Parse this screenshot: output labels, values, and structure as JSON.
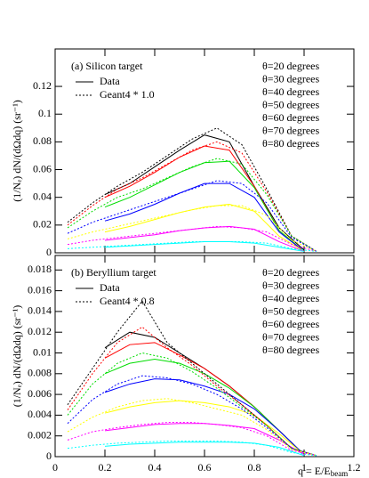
{
  "chart_data": [
    {
      "type": "line",
      "title": "(a) Silicon target",
      "y_label": "(1/Nₑ) dN/(dΩdq) (sr⁻¹)",
      "style_legend": [
        "Data",
        "Geant4 * 1.0"
      ],
      "xlim": [
        0,
        1.2
      ],
      "ylim": [
        0,
        0.147
      ],
      "yticks": [
        0,
        0.02,
        0.04,
        0.06,
        0.08,
        0.1,
        0.12
      ],
      "series": [
        {
          "name": "θ=20 degrees",
          "color": "#000000",
          "style": "solid",
          "x": [
            0.2,
            0.3,
            0.4,
            0.5,
            0.6,
            0.7,
            0.8,
            0.9,
            1
          ],
          "values": [
            0.042,
            0.05,
            0.062,
            0.074,
            0.085,
            0.08,
            0.048,
            0.018,
            0.002
          ]
        },
        {
          "name": "θ=30 degrees",
          "color": "#ff0000",
          "style": "solid",
          "x": [
            0.2,
            0.3,
            0.4,
            0.5,
            0.6,
            0.7,
            0.8,
            0.9,
            1
          ],
          "values": [
            0.04,
            0.048,
            0.058,
            0.069,
            0.077,
            0.074,
            0.048,
            0.016,
            0.001
          ]
        },
        {
          "name": "θ=40 degrees",
          "color": "#00dd00",
          "style": "solid",
          "x": [
            0.2,
            0.3,
            0.4,
            0.5,
            0.6,
            0.7,
            0.8,
            0.9,
            1
          ],
          "values": [
            0.033,
            0.04,
            0.049,
            0.058,
            0.065,
            0.066,
            0.047,
            0.016,
            0.001
          ]
        },
        {
          "name": "θ=50 degrees",
          "color": "#0000ff",
          "style": "solid",
          "x": [
            0.2,
            0.3,
            0.4,
            0.5,
            0.6,
            0.7,
            0.8,
            0.9,
            1
          ],
          "values": [
            0.023,
            0.028,
            0.035,
            0.043,
            0.05,
            0.05,
            0.04,
            0.015,
            0.001
          ]
        },
        {
          "name": "θ=60 degrees",
          "color": "#ffff00",
          "style": "solid",
          "x": [
            0.2,
            0.3,
            0.4,
            0.5,
            0.6,
            0.7,
            0.8,
            0.9,
            1
          ],
          "values": [
            0.015,
            0.019,
            0.024,
            0.029,
            0.033,
            0.035,
            0.03,
            0.012,
            0.001
          ]
        },
        {
          "name": "θ=70 degrees",
          "color": "#ff00ff",
          "style": "solid",
          "x": [
            0.2,
            0.3,
            0.4,
            0.5,
            0.6,
            0.7,
            0.8,
            0.9,
            1
          ],
          "values": [
            0.009,
            0.011,
            0.013,
            0.016,
            0.018,
            0.019,
            0.017,
            0.008,
            0.001
          ]
        },
        {
          "name": "θ=80 degrees",
          "color": "#00ffff",
          "style": "solid",
          "x": [
            0.2,
            0.3,
            0.4,
            0.5,
            0.6,
            0.7,
            0.8,
            0.9,
            1
          ],
          "values": [
            0.004,
            0.005,
            0.006,
            0.007,
            0.008,
            0.008,
            0.007,
            0.004,
            0.001
          ]
        },
        {
          "color": "#000000",
          "style": "dashed",
          "x": [
            0.05,
            0.15,
            0.25,
            0.35,
            0.45,
            0.55,
            0.65,
            0.75,
            0.85,
            0.95,
            1.05
          ],
          "values": [
            0.022,
            0.036,
            0.048,
            0.058,
            0.07,
            0.082,
            0.09,
            0.078,
            0.046,
            0.012,
            0.001
          ]
        },
        {
          "color": "#ff0000",
          "style": "dashed",
          "x": [
            0.05,
            0.15,
            0.25,
            0.35,
            0.45,
            0.55,
            0.65,
            0.75,
            0.85,
            0.95,
            1.05
          ],
          "values": [
            0.02,
            0.034,
            0.046,
            0.054,
            0.064,
            0.074,
            0.08,
            0.072,
            0.044,
            0.012,
            0.001
          ]
        },
        {
          "color": "#00dd00",
          "style": "dashed",
          "x": [
            0.05,
            0.15,
            0.25,
            0.35,
            0.45,
            0.55,
            0.65,
            0.75,
            0.85,
            0.95,
            1.05
          ],
          "values": [
            0.018,
            0.03,
            0.04,
            0.046,
            0.054,
            0.062,
            0.068,
            0.064,
            0.042,
            0.012,
            0.001
          ]
        },
        {
          "color": "#0000ff",
          "style": "dashed",
          "x": [
            0.05,
            0.15,
            0.25,
            0.35,
            0.45,
            0.55,
            0.65,
            0.75,
            0.85,
            0.95,
            1.05
          ],
          "values": [
            0.014,
            0.022,
            0.028,
            0.034,
            0.04,
            0.046,
            0.052,
            0.05,
            0.036,
            0.011,
            0.001
          ]
        },
        {
          "color": "#ffff00",
          "style": "dashed",
          "x": [
            0.05,
            0.15,
            0.25,
            0.35,
            0.45,
            0.55,
            0.65,
            0.75,
            0.85,
            0.95,
            1.05
          ],
          "values": [
            0.01,
            0.015,
            0.019,
            0.023,
            0.027,
            0.031,
            0.034,
            0.034,
            0.027,
            0.009,
            0.001
          ]
        },
        {
          "color": "#ff00ff",
          "style": "dashed",
          "x": [
            0.05,
            0.15,
            0.25,
            0.35,
            0.45,
            0.55,
            0.65,
            0.75,
            0.85,
            0.95,
            1.05
          ],
          "values": [
            0.006,
            0.009,
            0.011,
            0.013,
            0.015,
            0.017,
            0.019,
            0.018,
            0.015,
            0.006,
            0.001
          ]
        },
        {
          "color": "#00ffff",
          "style": "dashed",
          "x": [
            0.05,
            0.15,
            0.25,
            0.35,
            0.45,
            0.55,
            0.65,
            0.75,
            0.85,
            0.95,
            1.05
          ],
          "values": [
            0.003,
            0.004,
            0.005,
            0.006,
            0.007,
            0.008,
            0.008,
            0.008,
            0.007,
            0.003,
            0.001
          ]
        }
      ]
    },
    {
      "type": "line",
      "title": "(b) Beryllium target",
      "y_label": "(1/Nₑ) dN/(dΩdq) (sr⁻¹)",
      "x_label": "q = E/E",
      "x_label_sub": "beam",
      "style_legend": [
        "Data",
        "Geant4 * 0.8"
      ],
      "xlim": [
        0,
        1.2
      ],
      "ylim": [
        0,
        0.0194
      ],
      "xticks": [
        0,
        0.2,
        0.4,
        0.6,
        0.8,
        1,
        1.2
      ],
      "yticks": [
        0,
        0.002,
        0.004,
        0.006,
        0.008,
        0.01,
        0.012,
        0.014,
        0.016,
        0.018
      ],
      "series": [
        {
          "name": "θ=20 degrees",
          "color": "#000000",
          "style": "solid",
          "x": [
            0.2,
            0.3,
            0.4,
            0.5,
            0.6,
            0.7,
            0.8,
            0.9,
            1
          ],
          "values": [
            0.0105,
            0.012,
            0.0115,
            0.01,
            0.0085,
            0.0068,
            0.0048,
            0.0025,
            0.0002
          ]
        },
        {
          "name": "θ=30 degrees",
          "color": "#ff0000",
          "style": "solid",
          "x": [
            0.2,
            0.3,
            0.4,
            0.5,
            0.6,
            0.7,
            0.8,
            0.9,
            1
          ],
          "values": [
            0.0095,
            0.0108,
            0.011,
            0.0098,
            0.0085,
            0.0068,
            0.0048,
            0.0025,
            0.0002
          ]
        },
        {
          "name": "θ=40 degrees",
          "color": "#00dd00",
          "style": "solid",
          "x": [
            0.2,
            0.3,
            0.4,
            0.5,
            0.6,
            0.7,
            0.8,
            0.9,
            1
          ],
          "values": [
            0.008,
            0.009,
            0.0094,
            0.009,
            0.008,
            0.0066,
            0.0048,
            0.0025,
            0.0002
          ]
        },
        {
          "name": "θ=50 degrees",
          "color": "#0000ff",
          "style": "solid",
          "x": [
            0.2,
            0.3,
            0.4,
            0.5,
            0.6,
            0.7,
            0.8,
            0.9,
            1
          ],
          "values": [
            0.0062,
            0.007,
            0.0075,
            0.0074,
            0.0068,
            0.006,
            0.0046,
            0.0025,
            0.0002
          ]
        },
        {
          "name": "θ=60 degrees",
          "color": "#ffff00",
          "style": "solid",
          "x": [
            0.2,
            0.3,
            0.4,
            0.5,
            0.6,
            0.7,
            0.8,
            0.9,
            1
          ],
          "values": [
            0.0042,
            0.0048,
            0.0052,
            0.0054,
            0.0052,
            0.0048,
            0.004,
            0.0022,
            0.0002
          ]
        },
        {
          "name": "θ=70 degrees",
          "color": "#ff00ff",
          "style": "solid",
          "x": [
            0.2,
            0.3,
            0.4,
            0.5,
            0.6,
            0.7,
            0.8,
            0.9,
            1
          ],
          "values": [
            0.0025,
            0.0028,
            0.0031,
            0.0032,
            0.0032,
            0.003,
            0.0027,
            0.0016,
            0.0002
          ]
        },
        {
          "name": "θ=80 degrees",
          "color": "#00ffff",
          "style": "solid",
          "x": [
            0.2,
            0.3,
            0.4,
            0.5,
            0.6,
            0.7,
            0.8,
            0.9,
            1
          ],
          "values": [
            0.001,
            0.0012,
            0.0013,
            0.0014,
            0.0014,
            0.0014,
            0.0013,
            0.0009,
            0.0001
          ]
        },
        {
          "color": "#000000",
          "style": "dashed",
          "x": [
            0.05,
            0.15,
            0.25,
            0.35,
            0.45,
            0.55,
            0.65,
            0.75,
            0.85,
            0.95,
            1.05
          ],
          "values": [
            0.005,
            0.0085,
            0.012,
            0.015,
            0.011,
            0.009,
            0.007,
            0.005,
            0.003,
            0.0008,
            0.0001
          ]
        },
        {
          "color": "#ff0000",
          "style": "dashed",
          "x": [
            0.05,
            0.15,
            0.25,
            0.35,
            0.45,
            0.55,
            0.65,
            0.75,
            0.85,
            0.95,
            1.05
          ],
          "values": [
            0.0045,
            0.008,
            0.011,
            0.0125,
            0.0105,
            0.0088,
            0.0068,
            0.005,
            0.003,
            0.0008,
            0.0001
          ]
        },
        {
          "color": "#00dd00",
          "style": "dashed",
          "x": [
            0.05,
            0.15,
            0.25,
            0.35,
            0.45,
            0.55,
            0.65,
            0.75,
            0.85,
            0.95,
            1.05
          ],
          "values": [
            0.004,
            0.007,
            0.009,
            0.01,
            0.0095,
            0.0082,
            0.0066,
            0.0048,
            0.003,
            0.0008,
            0.0001
          ]
        },
        {
          "color": "#0000ff",
          "style": "dashed",
          "x": [
            0.05,
            0.15,
            0.25,
            0.35,
            0.45,
            0.55,
            0.65,
            0.75,
            0.85,
            0.95,
            1.05
          ],
          "values": [
            0.0032,
            0.0055,
            0.007,
            0.0078,
            0.0076,
            0.007,
            0.006,
            0.0046,
            0.0028,
            0.0008,
            0.0001
          ]
        },
        {
          "color": "#ffff00",
          "style": "dashed",
          "x": [
            0.05,
            0.15,
            0.25,
            0.35,
            0.45,
            0.55,
            0.65,
            0.75,
            0.85,
            0.95,
            1.05
          ],
          "values": [
            0.0024,
            0.0038,
            0.0048,
            0.0054,
            0.0056,
            0.0052,
            0.0046,
            0.004,
            0.0026,
            0.0007,
            0.0001
          ]
        },
        {
          "color": "#ff00ff",
          "style": "dashed",
          "x": [
            0.05,
            0.15,
            0.25,
            0.35,
            0.45,
            0.55,
            0.65,
            0.75,
            0.85,
            0.95,
            1.05
          ],
          "values": [
            0.0016,
            0.0024,
            0.0028,
            0.0031,
            0.0033,
            0.0033,
            0.0031,
            0.0028,
            0.002,
            0.0006,
            0.0001
          ]
        },
        {
          "color": "#00ffff",
          "style": "dashed",
          "x": [
            0.05,
            0.15,
            0.25,
            0.35,
            0.45,
            0.55,
            0.65,
            0.75,
            0.85,
            0.95,
            1.05
          ],
          "values": [
            0.0008,
            0.0011,
            0.0013,
            0.0014,
            0.0015,
            0.0015,
            0.0015,
            0.0014,
            0.0011,
            0.0004,
            0.0001
          ]
        }
      ]
    }
  ]
}
